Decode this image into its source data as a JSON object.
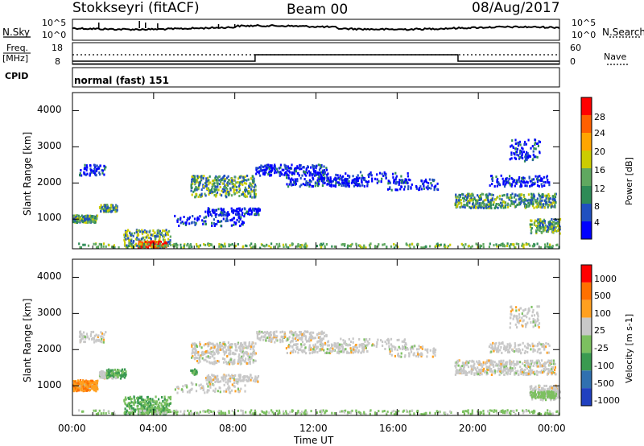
{
  "header": {
    "station": "Stokkseyri (fitACF)",
    "beam": "Beam 00",
    "date": "08/Aug/2017"
  },
  "left_labels": {
    "nsky": "N.Sky",
    "freq": "Freq.",
    "mhz": "[MHz]",
    "cpid": "CPID"
  },
  "right_labels": {
    "nsearch": "N.Search",
    "nave": "Nave"
  },
  "strip": {
    "noise_ticks": [
      "10^5",
      "10^0"
    ],
    "freq_ticks": [
      "18",
      "8"
    ],
    "nave_ticks": [
      "60",
      "0"
    ],
    "cpid_text": "normal (fast) 151"
  },
  "chart_data": [
    {
      "type": "heatmap",
      "name": "power-panel",
      "ylabel": "Slant Range [km]",
      "y_ticks": [
        1000,
        2000,
        3000,
        4000
      ],
      "ylim": [
        180,
        4500
      ],
      "x_ticks": [
        "00:00",
        "04:00",
        "08:00",
        "12:00",
        "16:00",
        "20:00",
        "00:00"
      ],
      "xlim_hours": [
        0,
        24
      ],
      "colorbar_label": "Power [dB]",
      "colorbar_ticks": [
        "28",
        "24",
        "20",
        "16",
        "12",
        "8",
        "4"
      ],
      "colors": [
        "#0000ff",
        "#2050c0",
        "#2e8b57",
        "#60a860",
        "#cccc00",
        "#ffa500",
        "#ff6000",
        "#ff0000"
      ]
    },
    {
      "type": "heatmap",
      "name": "velocity-panel",
      "ylabel": "Slant Range [km]",
      "y_ticks": [
        1000,
        2000,
        3000,
        4000
      ],
      "ylim": [
        180,
        4500
      ],
      "x_ticks": [
        "00:00",
        "04:00",
        "08:00",
        "12:00",
        "16:00",
        "20:00",
        "00:00"
      ],
      "xlim_hours": [
        0,
        24
      ],
      "xlabel": "Time UT",
      "colorbar_label": "Velocity [m s-1]",
      "colorbar_ticks": [
        "1000",
        "500",
        "100",
        "25",
        "-25",
        "-100",
        "-500",
        "-1000"
      ],
      "colors": [
        "#2040c0",
        "#3070b0",
        "#3a9a50",
        "#7cc060",
        "#c8c8c8",
        "#ffa020",
        "#ff7000",
        "#ff0000"
      ]
    }
  ]
}
